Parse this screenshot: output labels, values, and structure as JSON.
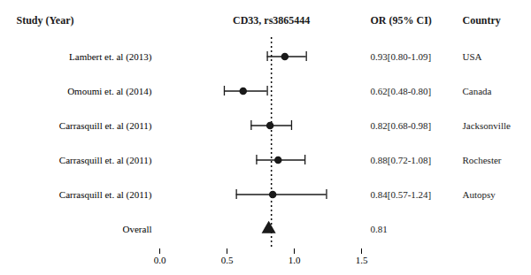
{
  "chart_data": {
    "type": "forest",
    "categories": [
      "Lambert et. al (2013)",
      "Omoumi et. al (2014)",
      "Carrasquill et. al (2011)",
      "Carrasquill et. al (2011)",
      "Carrasquill et. al (2011)",
      "Overall"
    ],
    "values": [
      0.93,
      0.62,
      0.82,
      0.88,
      0.84,
      0.81
    ],
    "ci_lower": [
      0.8,
      0.48,
      0.68,
      0.72,
      0.57,
      null
    ],
    "ci_upper": [
      1.09,
      0.8,
      0.98,
      1.08,
      1.24,
      null
    ],
    "value_labels": [
      "0.93[0.80-1.09]",
      "0.62[0.48-0.80]",
      "0.82[0.68-0.98]",
      "0.88[0.72-1.08]",
      "0.84[0.57-1.24]",
      "0.81"
    ],
    "countries": [
      "USA",
      "Canada",
      "Jacksonville",
      "Rochester",
      "Autopsy",
      null
    ],
    "column_headers": [
      "Study (Year)",
      "CD33, rs3865444",
      "OR (95% CI)",
      "Country"
    ],
    "reference_line": 0.83,
    "xlim": [
      0.0,
      1.5
    ],
    "xticks": [
      {
        "value": 0,
        "label": "0.0"
      },
      0.5,
      {
        "value": 1,
        "label": "1.0"
      },
      1.5
    ],
    "color": "#1a1a1a",
    "grid": false
  }
}
